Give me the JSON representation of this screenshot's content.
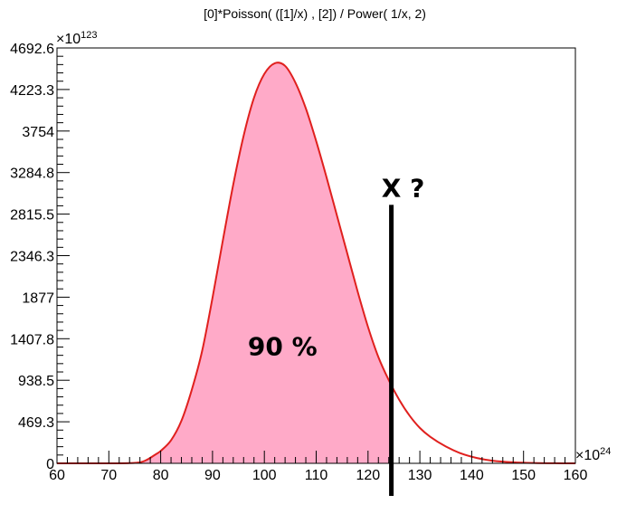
{
  "chart_data": {
    "type": "area",
    "title": "[0]*Poisson( ([1]/x) , [2]) / Power( 1/x, 2)",
    "x_multiplier": "×10",
    "x_multiplier_exp": "24",
    "y_multiplier": "×10",
    "y_multiplier_exp": "123",
    "xlim": [
      60,
      160
    ],
    "ylim": [
      0,
      4692.6
    ],
    "x_ticks": [
      "60",
      "70",
      "80",
      "90",
      "100",
      "110",
      "120",
      "130",
      "140",
      "150",
      "160"
    ],
    "x_tick_values": [
      60,
      70,
      80,
      90,
      100,
      110,
      120,
      130,
      140,
      150,
      160
    ],
    "y_ticks": [
      "0",
      "469.3",
      "938.5",
      "1407.8",
      "1877",
      "2346.3",
      "2815.5",
      "3284.8",
      "3754",
      "4223.3",
      "4692.6"
    ],
    "y_tick_values": [
      0,
      469.3,
      938.5,
      1407.8,
      1877,
      2346.3,
      2815.5,
      3284.8,
      3754,
      4223.3,
      4692.6
    ],
    "curve_points": [
      [
        60,
        0
      ],
      [
        70,
        0
      ],
      [
        75,
        5
      ],
      [
        77,
        30
      ],
      [
        79,
        100
      ],
      [
        80,
        140
      ],
      [
        82,
        260
      ],
      [
        84,
        480
      ],
      [
        86,
        830
      ],
      [
        88,
        1270
      ],
      [
        90,
        1870
      ],
      [
        92,
        2520
      ],
      [
        94,
        3150
      ],
      [
        96,
        3700
      ],
      [
        98,
        4130
      ],
      [
        100,
        4400
      ],
      [
        102,
        4520
      ],
      [
        104,
        4490
      ],
      [
        106,
        4300
      ],
      [
        108,
        4010
      ],
      [
        110,
        3640
      ],
      [
        112,
        3230
      ],
      [
        114,
        2800
      ],
      [
        116,
        2370
      ],
      [
        118,
        1940
      ],
      [
        120,
        1540
      ],
      [
        122,
        1200
      ],
      [
        124,
        940
      ],
      [
        126,
        720
      ],
      [
        128,
        540
      ],
      [
        130,
        400
      ],
      [
        132,
        300
      ],
      [
        135,
        190
      ],
      [
        138,
        110
      ],
      [
        141,
        60
      ],
      [
        144,
        30
      ],
      [
        148,
        12
      ],
      [
        152,
        4
      ],
      [
        156,
        1
      ],
      [
        160,
        0
      ]
    ],
    "shaded_until_x": 124.5,
    "marker_x": 124.5,
    "marker_label": "X ?",
    "region_label": "90 %",
    "curve_color": "#e0201e",
    "fill_color": "#ffaac8",
    "marker_color": "#000000",
    "grid": false,
    "legend": "none"
  }
}
